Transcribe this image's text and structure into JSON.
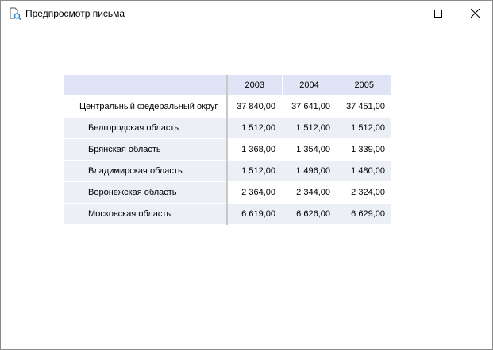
{
  "window": {
    "title": "Предпросмотр письма",
    "icon": "document-preview-icon"
  },
  "table": {
    "columns": [
      "2003",
      "2004",
      "2005"
    ],
    "rows": [
      {
        "label": "Центральный федеральный округ",
        "values": [
          "37 840,00",
          "37 641,00",
          "37 451,00"
        ]
      },
      {
        "label": "Белгородская область",
        "values": [
          "1 512,00",
          "1 512,00",
          "1 512,00"
        ]
      },
      {
        "label": "Брянская область",
        "values": [
          "1 368,00",
          "1 354,00",
          "1 339,00"
        ]
      },
      {
        "label": "Владимирская область",
        "values": [
          "1 512,00",
          "1 496,00",
          "1 480,00"
        ]
      },
      {
        "label": "Воронежская область",
        "values": [
          "2 364,00",
          "2 344,00",
          "2 324,00"
        ]
      },
      {
        "label": "Московская область",
        "values": [
          "6 619,00",
          "6 626,00",
          "6 629,00"
        ]
      }
    ]
  },
  "colors": {
    "header_bg": "#dfe4f6",
    "row_alt_bg": "#eceff6"
  }
}
